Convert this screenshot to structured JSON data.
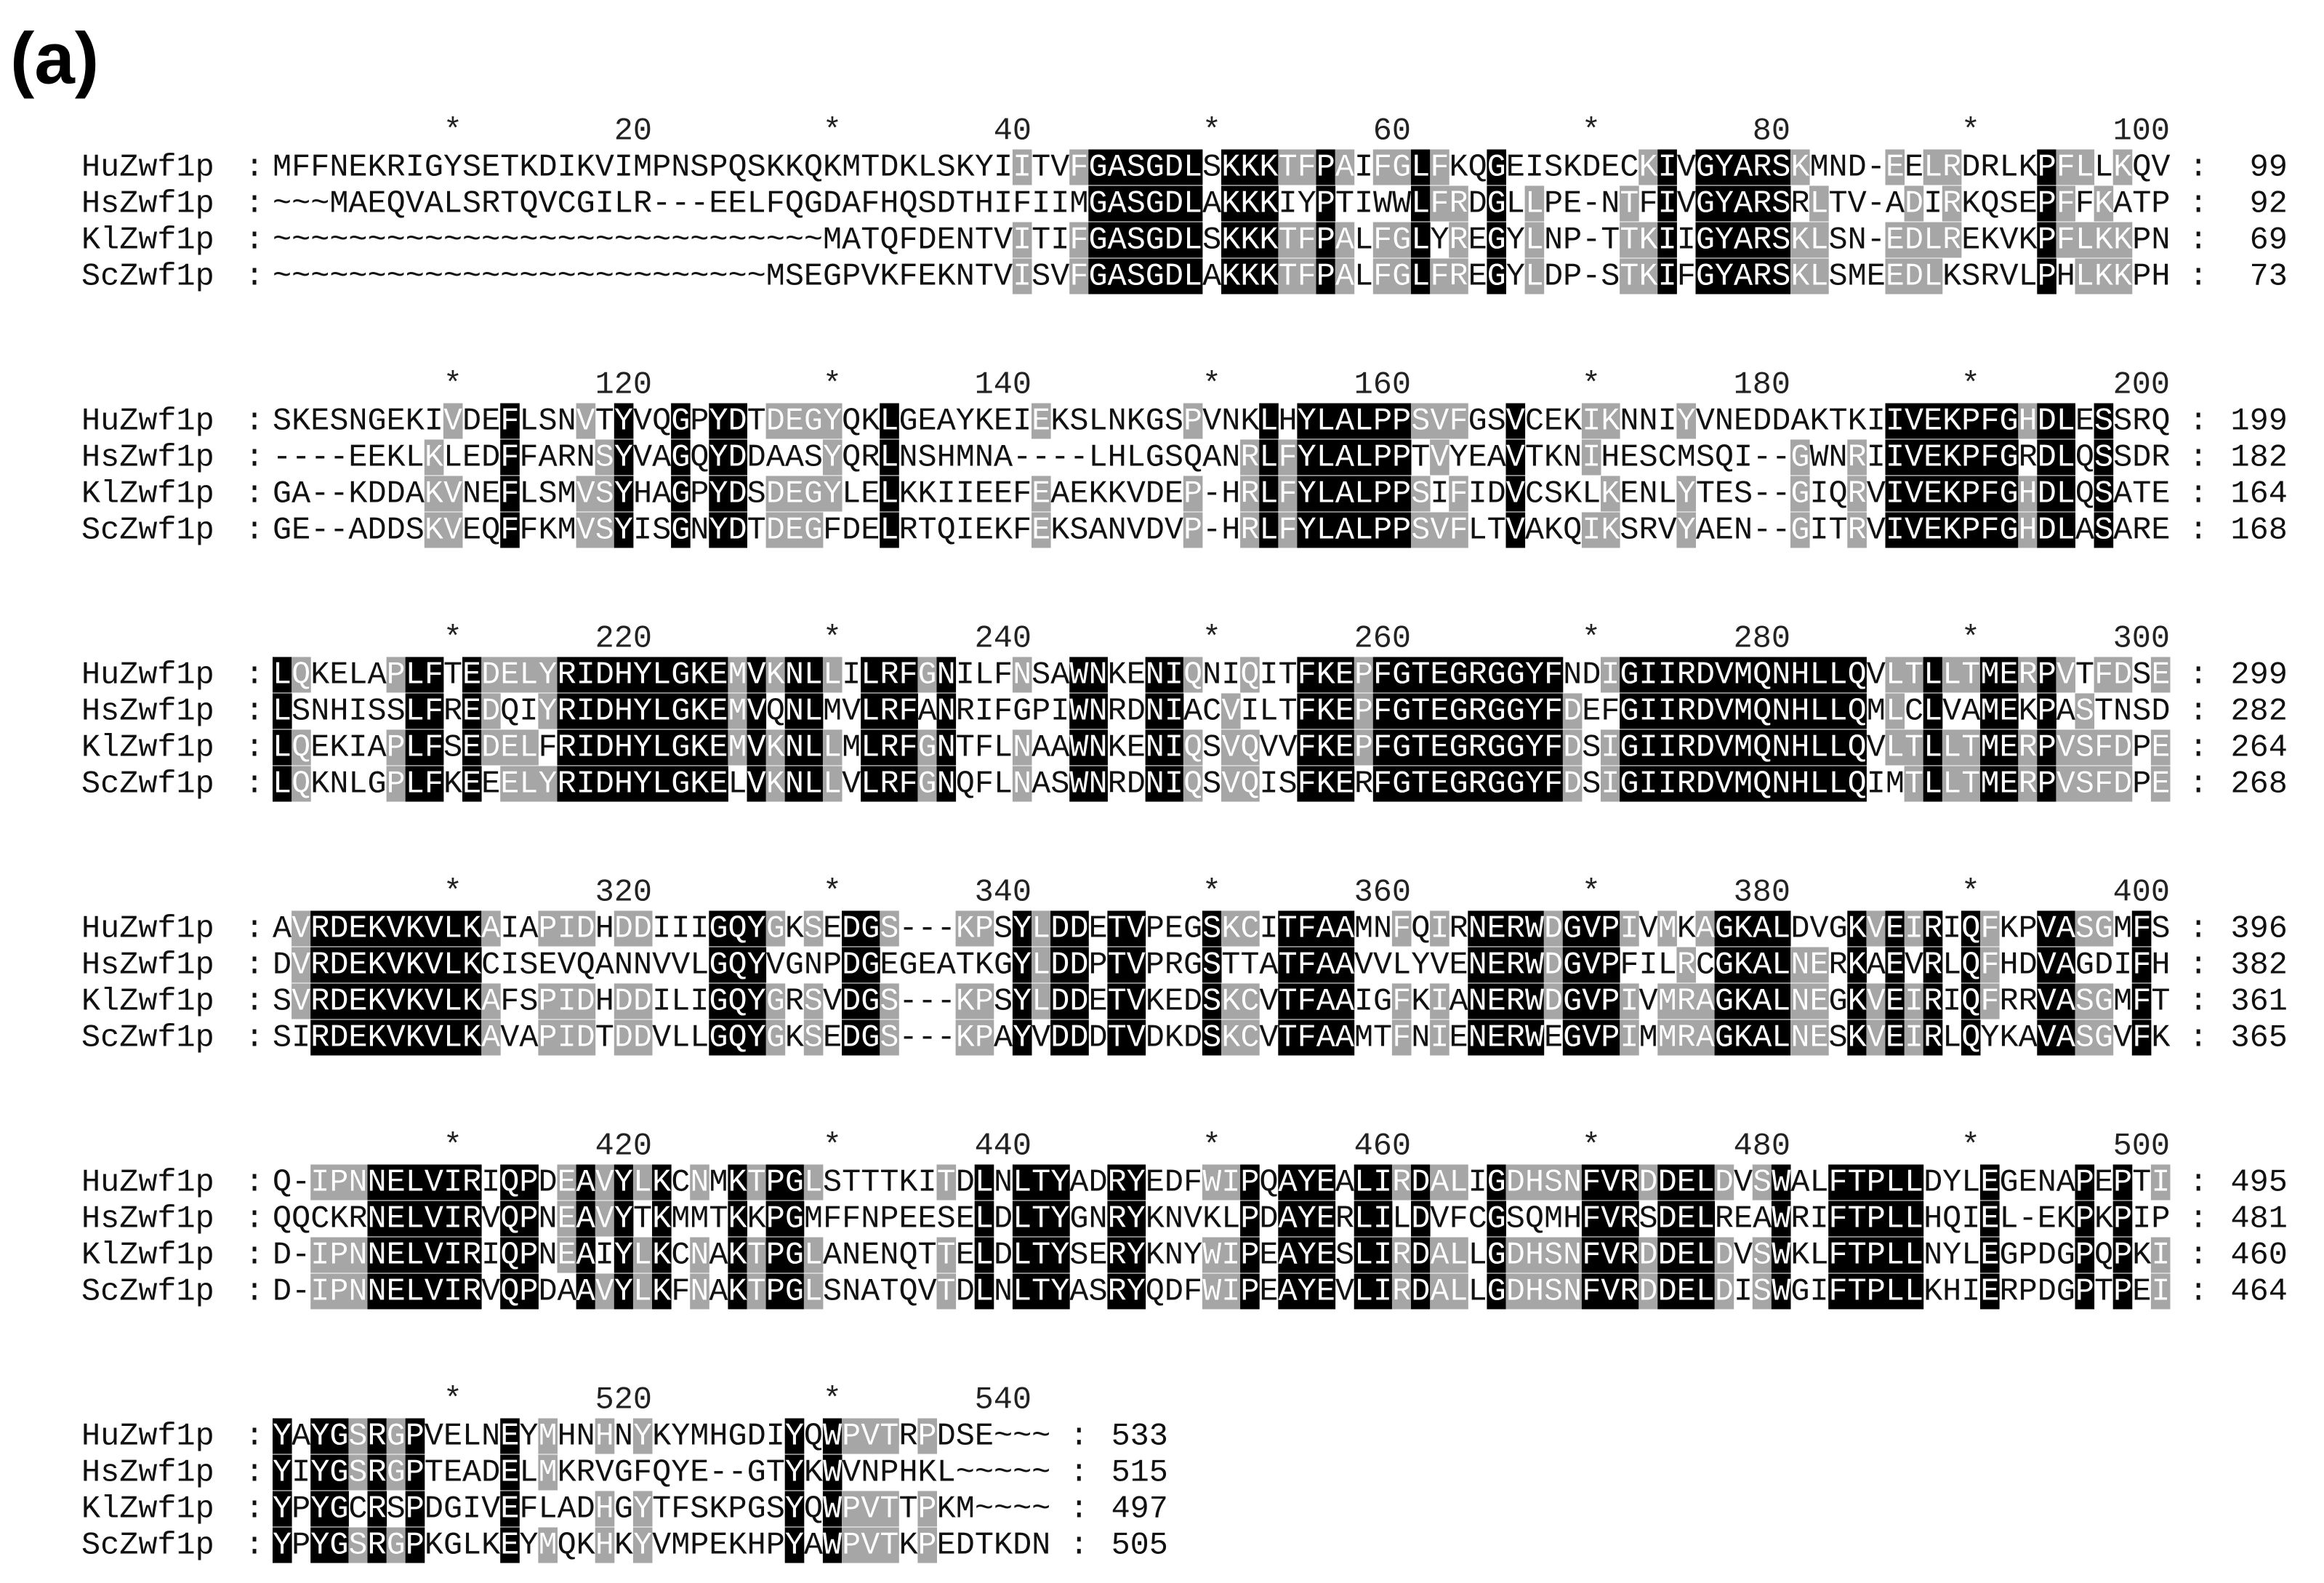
{
  "panel_label": "(a)",
  "separator": ":",
  "blocks": [
    {
      "ruler": [
        "*",
        "20",
        "*",
        "40",
        "*",
        "60",
        "*",
        "80",
        "*",
        "100"
      ],
      "rows": [
        {
          "name": "HuZwf1p",
          "sequence": "MFFNEKRIGYSETKDIKVIMPNSPQSKKQKMTDKLSKYIITVFGASGDLSKKKTFPAIFGLFKQGEISKDECKIVGYARSKMND-EELRDRLKPFLLKQV",
          "end": 99
        },
        {
          "name": "HsZwf1p",
          "sequence": "~~~MAEQVALSRTQVCGILR---EELFQGDAFHQSDTHIFIIMGASGDLAKKKIYPTIWWLFRDGLLPE-NTFIVGYARSRLTV-ADIRKQSEPFFKATP",
          "end": 92
        },
        {
          "name": "KlZwf1p",
          "sequence": "~~~~~~~~~~~~~~~~~~~~~~~~~~~~~MATQFDENTVITIFGASGDLSKKKTFPALFGLYREGYLNP-TTKIIGYARSKLSN-EDLREKVKPFLKKPN",
          "end": 69
        },
        {
          "name": "ScZwf1p",
          "sequence": "~~~~~~~~~~~~~~~~~~~~~~~~~~MSEGPVKFEKNTVISVFGASGDLAKKKTFPALFGLFREGYLDP-STKIFGYARSKLSMEEDLKSRVLPHLKKPH",
          "end": 73
        }
      ]
    },
    {
      "ruler": [
        "*",
        "120",
        "*",
        "140",
        "*",
        "160",
        "*",
        "180",
        "*",
        "200"
      ],
      "rows": [
        {
          "name": "HuZwf1p",
          "sequence": "SKESNGEKIVDEFLSNVTYVQGPYDTDEGYQKLGEAYKEIEKSLNKGSPVNKLHYLALPPSVFGSVCEKIKNNIYVNEDDAKTKIIVEKPFGHDLESSRQ",
          "end": 199
        },
        {
          "name": "HsZwf1p",
          "sequence": "----EEKLKLEDFFARNSYVAGQYDDAASYQRLNSHMNA----LHLGSQANRLFYLALPPTVYEAVTKNIHESCMSQI--GWNRIIVEKPFGRDLQSSDR",
          "end": 182
        },
        {
          "name": "KlZwf1p",
          "sequence": "GA--KDDAKVNEFLSMVSYHAGPYDSDEGYLELKKIIEEFEAEKKVDEP-HRLFYLALPPSIFIDVCSKLKENLYTES--GIQRVIVEKPFGHDLQSATE",
          "end": 164
        },
        {
          "name": "ScZwf1p",
          "sequence": "GE--ADDSKVEQFFKMVSYISGNYDTDEGFDELRTQIEKFEKSANVDVP-HRLFYLALPPSVFLTVAKQIKSRVYAEN--GITRVIVEKPFGHDLASARE",
          "end": 168
        }
      ]
    },
    {
      "ruler": [
        "*",
        "220",
        "*",
        "240",
        "*",
        "260",
        "*",
        "280",
        "*",
        "300"
      ],
      "rows": [
        {
          "name": "HuZwf1p",
          "sequence": "LQKELAPLFTEDELYRIDHYLGKEMVKNLLILRFGNILFNSAWNKENIQNIQITFKEPFGTEGRGGYFNDIGIIRDVMQNHLLQVLTLLTMERPVTFDSE",
          "end": 299
        },
        {
          "name": "HsZwf1p",
          "sequence": "LSNHISSLFREDQIYRIDHYLGKEMVQNLMVLRFANRIFGPIWNRDNIACVILTFKEPFGTEGRGGYFDEFGIIRDVMQNHLLQMLCLVAMEKPASTNSD",
          "end": 282
        },
        {
          "name": "KlZwf1p",
          "sequence": "LQEKIAPLFSEDELFRIDHYLGKEMVKNLLMLRFGNTFLNAAWNKENIQSVQVVFKEPFGTEGRGGYFDSIGIIRDVMQNHLLQVLTLLTMERPVSFDPE",
          "end": 264
        },
        {
          "name": "ScZwf1p",
          "sequence": "LQKNLGPLFKEEELYRIDHYLGKELVKNLLVLRFGNQFLNASWNRDNIQSVQISFKERFGTEGRGGYFDSIGIIRDVMQNHLLQIMTLLTMERPVSFDPE",
          "end": 268
        }
      ]
    },
    {
      "ruler": [
        "*",
        "320",
        "*",
        "340",
        "*",
        "360",
        "*",
        "380",
        "*",
        "400"
      ],
      "rows": [
        {
          "name": "HuZwf1p",
          "sequence": "AVRDEKVKVLKAIAPIDHDDIIIGQYGKSEDGS---KPSYLDDETVPEGSKCITFAAMNFQIRNERWDGVPIVMKAGKALDVGKVEIRIQFKPVASGMFS",
          "end": 396
        },
        {
          "name": "HsZwf1p",
          "sequence": "DVRDEKVKVLKCISEVQANNVVLGQYVGNPDGEGEATKGYLDDPTVPRGSTTATFAAVVLYVENERWDGVPFILRCGKALNERKAEVRLQFHDVAGDIFH",
          "end": 382
        },
        {
          "name": "KlZwf1p",
          "sequence": "SVRDEKVKVLKAFSPIDHDDILIGQYGRSVDGS---KPSYLDDETVKEDSKCVTFAAIGFKIANERWDGVPIVMRAGKALNEGKVEIRIQFRRVASGMFT",
          "end": 361
        },
        {
          "name": "ScZwf1p",
          "sequence": "SIRDEKVKVLKAVAPIDTDDVLLGQYGKSEDGS---KPAYVDDDTVDKDSKCVTFAAMTFNIENERWEGVPIMMRAGKALNESKVEIRLQYKAVASGVFK",
          "end": 365
        }
      ]
    },
    {
      "ruler": [
        "*",
        "420",
        "*",
        "440",
        "*",
        "460",
        "*",
        "480",
        "*",
        "500"
      ],
      "rows": [
        {
          "name": "HuZwf1p",
          "sequence": "Q-IPNNELVIRIQPDEAVYLKCNMKTPGLSTTTKITDLNLTYADRYEDFWIPQAYEALIRDALIGDHSNFVRDDELDVSWALFTPLLDYLEGENAPEPTI",
          "end": 495
        },
        {
          "name": "HsZwf1p",
          "sequence": "QQCKRNELVIRVQPNEAVYTKMMTKKPGMFFNPEESELDLTYGNRYKNVKLPDAYERLILDVFCGSQMHFVRSDELREAWRIFTPLLHQIEL-EKPKPIP",
          "end": 481
        },
        {
          "name": "KlZwf1p",
          "sequence": "D-IPNNELVIRIQPNEAIYLKCNAKTPGLANENQTTELDLTYSERYKNYWIPEAYESLIRDALLGDHSNFVRDDELDVSWKLFTPLLNYLEGPDGPQPKI",
          "end": 460
        },
        {
          "name": "ScZwf1p",
          "sequence": "D-IPNNELVIRVQPDAAVYLKFNAKTPGLSNATQVTDLNLTYASRYQDFWIPEAYEVLIRDALLGDHSNFVRDDELDISWGIFTPLLKHIERPDGPTPEI",
          "end": 464
        }
      ]
    },
    {
      "ruler": [
        "*",
        "520",
        "*",
        "540"
      ],
      "rows": [
        {
          "name": "HuZwf1p",
          "sequence": "YAYGSRGPVELNEYMHNHNYKYMHGDIYQWPVTRPDSE~~~",
          "end": 533
        },
        {
          "name": "HsZwf1p",
          "sequence": "YIYGSRGPTEADELMKRVGFQYE--GTYKWVNPHKL~~~~~",
          "end": 515
        },
        {
          "name": "KlZwf1p",
          "sequence": "YPYGCRSPDGIVEFLADHGYTFSKPGSYQWPVTTPKM~~~~",
          "end": 497
        },
        {
          "name": "ScZwf1p",
          "sequence": "YPYGSRGPKGLKEYMQKHKYVMPEKHPYAWPVTKPEDTKDN",
          "end": 505
        }
      ]
    }
  ]
}
